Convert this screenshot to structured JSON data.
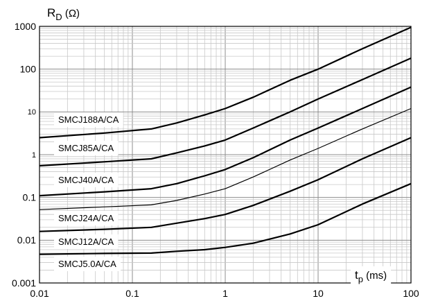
{
  "chart_data": {
    "type": "line",
    "x_scale": "log",
    "y_scale": "log",
    "xlim": [
      0.01,
      100
    ],
    "ylim": [
      0.001,
      1000
    ],
    "grid": true,
    "y_axis_title": {
      "symbol": "R",
      "subscript": "D",
      "unit": " (Ω)"
    },
    "x_axis_title": {
      "symbol": "t",
      "subscript": "p",
      "unit": " (ms)"
    },
    "x_ticks": [
      "0.01",
      "0.1",
      "1",
      "10",
      "100"
    ],
    "y_ticks": [
      "0.001",
      "0.01",
      "0.1",
      "1",
      "10",
      "100",
      "1000"
    ],
    "series": [
      {
        "name": "SMCJ188A/CA",
        "x": [
          0.01,
          0.05,
          0.16,
          0.3,
          0.6,
          1,
          2,
          5,
          10,
          30,
          100
        ],
        "y": [
          2.5,
          3.2,
          4.0,
          5.5,
          8.5,
          12,
          22,
          55,
          100,
          300,
          950
        ]
      },
      {
        "name": "SMCJ85A/CA",
        "x": [
          0.01,
          0.05,
          0.16,
          0.3,
          0.6,
          1,
          2,
          5,
          10,
          30,
          100
        ],
        "y": [
          0.55,
          0.68,
          0.8,
          1.1,
          1.6,
          2.2,
          4.2,
          10,
          20,
          57,
          180
        ]
      },
      {
        "name": "SMCJ40A/CA",
        "x": [
          0.01,
          0.05,
          0.16,
          0.3,
          0.6,
          1,
          2,
          5,
          10,
          30,
          100
        ],
        "y": [
          0.11,
          0.135,
          0.16,
          0.21,
          0.32,
          0.45,
          0.85,
          2.2,
          4.2,
          12,
          38
        ]
      },
      {
        "name": "SMCJ24A/CA",
        "x": [
          0.01,
          0.05,
          0.16,
          0.3,
          0.6,
          1,
          2,
          5,
          10,
          30,
          100
        ],
        "y": [
          0.052,
          0.06,
          0.067,
          0.085,
          0.12,
          0.16,
          0.3,
          0.75,
          1.4,
          4.0,
          12
        ]
      },
      {
        "name": "SMCJ12A/CA",
        "x": [
          0.01,
          0.05,
          0.16,
          0.3,
          0.6,
          1,
          2,
          5,
          10,
          30,
          100
        ],
        "y": [
          0.016,
          0.018,
          0.02,
          0.025,
          0.032,
          0.04,
          0.065,
          0.14,
          0.26,
          0.8,
          2.5
        ]
      },
      {
        "name": "SMCJ5.0A/CA",
        "x": [
          0.01,
          0.05,
          0.16,
          0.3,
          0.6,
          1,
          2,
          5,
          10,
          30,
          100
        ],
        "y": [
          0.0047,
          0.0049,
          0.005,
          0.0055,
          0.006,
          0.0068,
          0.0085,
          0.014,
          0.023,
          0.07,
          0.21
        ]
      }
    ],
    "colors": {
      "line": "#000000",
      "grid_major": "#8c8c8c",
      "grid_minor": "#c8c8c8",
      "label_bg": "#ffffff"
    }
  }
}
